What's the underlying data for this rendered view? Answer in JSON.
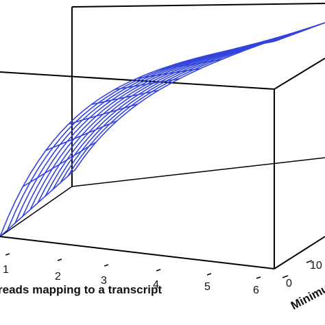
{
  "chart_data": {
    "type": "surface",
    "surface_color": "#3344dd",
    "frame_color": "#000000",
    "x_axis": {
      "label": "reads mapping to a transcript",
      "ticks": [
        "1",
        "2",
        "3",
        "4",
        "5",
        "6"
      ]
    },
    "y_axis": {
      "label": "Minimu",
      "ticks": [
        "0",
        "10"
      ]
    },
    "grid": {
      "rows": 12,
      "cols": 10
    },
    "surface_shape": "rises steeply near the low end of the reads axis, then flattens toward a plateau; drops toward the far side of the second axis"
  }
}
